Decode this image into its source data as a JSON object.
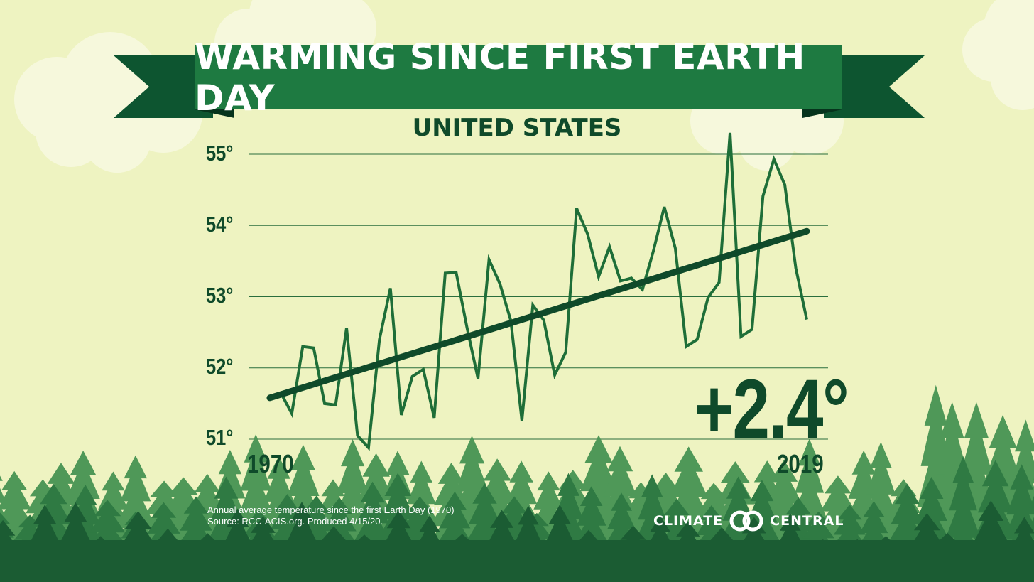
{
  "header": {
    "title": "WARMING SINCE FIRST EARTH DAY",
    "subtitle": "UNITED STATES"
  },
  "footer": {
    "note_line1": "Annual average temperature since the first Earth Day (1970)",
    "note_line2": "Source: RCC-ACIS.org. Produced 4/15/20.",
    "logo_left": "CLIMATE",
    "logo_right": "CENTRAL"
  },
  "colors": {
    "background": "#eef3c1",
    "banner": "#1e7a41",
    "banner_tail": "#0d5530",
    "line": "#1e6e38",
    "trend": "#0f4a2a",
    "forest_dark": "#1b5c33",
    "forest_mid": "#2f7a43",
    "forest_light": "#4f9858"
  },
  "chart_data": {
    "type": "line",
    "title": "WARMING SINCE FIRST EARTH DAY",
    "subtitle": "UNITED STATES",
    "xlabel": "",
    "ylabel": "",
    "x_tick_labels": [
      "1970",
      "2019"
    ],
    "y_tick_labels": [
      "55°",
      "54°",
      "53°",
      "52°",
      "51°"
    ],
    "y_ticks": [
      55,
      54,
      53,
      52,
      51
    ],
    "xlim": [
      1970,
      2019
    ],
    "ylim": [
      51,
      55
    ],
    "grid": true,
    "annotation": "+2.4°",
    "series": [
      {
        "x": [
          1970,
          1971,
          1972,
          1973,
          1974,
          1975,
          1976,
          1977,
          1978,
          1979,
          1980,
          1981,
          1982,
          1983,
          1984,
          1985,
          1986,
          1987,
          1988,
          1989,
          1990,
          1991,
          1992,
          1993,
          1994,
          1995,
          1996,
          1997,
          1998,
          1999,
          2000,
          2001,
          2002,
          2003,
          2004,
          2005,
          2006,
          2007,
          2008,
          2009,
          2010,
          2011,
          2012,
          2013,
          2014,
          2015,
          2016,
          2017,
          2018,
          2019
        ],
        "values": [
          51.6,
          51.65,
          51.36,
          52.3,
          52.28,
          51.5,
          51.48,
          52.56,
          51.05,
          50.88,
          52.4,
          53.12,
          51.34,
          51.88,
          51.98,
          51.3,
          53.33,
          53.34,
          52.56,
          51.85,
          53.52,
          53.18,
          52.66,
          51.26,
          52.88,
          52.67,
          51.9,
          52.22,
          54.24,
          53.88,
          53.28,
          53.7,
          53.22,
          53.26,
          53.1,
          53.64,
          54.26,
          53.68,
          52.3,
          52.4,
          52.99,
          53.2,
          55.3,
          52.44,
          52.54,
          54.41,
          54.93,
          54.57,
          53.4,
          52.68
        ]
      },
      {
        "x": [
          1970,
          2019
        ],
        "values": [
          51.58,
          53.92
        ]
      }
    ]
  }
}
